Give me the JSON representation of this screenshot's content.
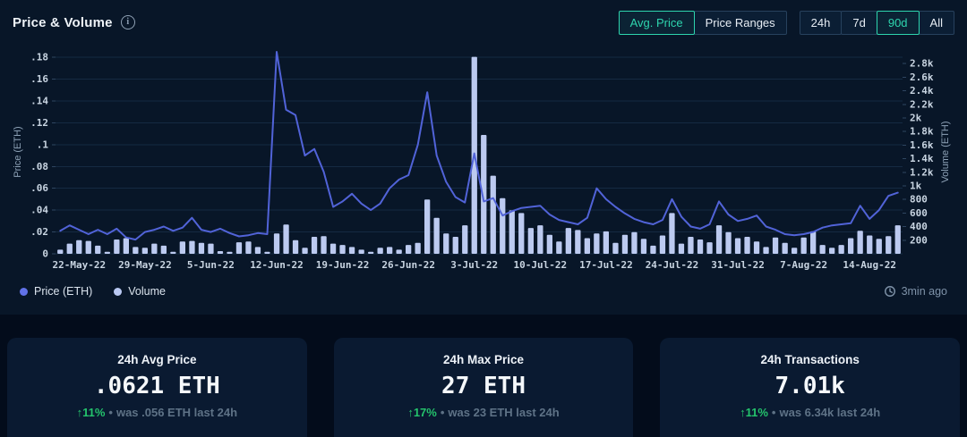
{
  "panel": {
    "title": "Price & Volume",
    "info_icon": "i",
    "updated": "3min ago",
    "legend": [
      {
        "label": "Price (ETH)",
        "color": "#6172e8"
      },
      {
        "label": "Volume",
        "color": "#b9c8f2"
      }
    ]
  },
  "controls": {
    "accent": "#2ed5ae",
    "view_modes": [
      {
        "label": "Avg. Price",
        "active": true
      },
      {
        "label": "Price Ranges",
        "active": false
      }
    ],
    "time_ranges": [
      {
        "label": "24h",
        "active": false
      },
      {
        "label": "7d",
        "active": false
      },
      {
        "label": "90d",
        "active": true
      },
      {
        "label": "All",
        "active": false
      }
    ]
  },
  "chart_data": {
    "type": "combo",
    "title": "Price & Volume (90d, daily)",
    "n_points": 90,
    "grid": true,
    "grid_color": "#152a42",
    "tick_mark_color": "#2e4560",
    "x_tick_labels": [
      "22-May-22",
      "29-May-22",
      "5-Jun-22",
      "12-Jun-22",
      "19-Jun-22",
      "26-Jun-22",
      "3-Jul-22",
      "10-Jul-22",
      "17-Jul-22",
      "24-Jul-22",
      "31-Jul-22",
      "7-Aug-22",
      "14-Aug-22"
    ],
    "x_tick_index": [
      2,
      9,
      16,
      23,
      30,
      37,
      44,
      51,
      58,
      65,
      72,
      79,
      86
    ],
    "price_axis": {
      "title": "Price (ETH)",
      "side": "left",
      "ticks": [
        0,
        0.02,
        0.04,
        0.06,
        0.08,
        0.1,
        0.12,
        0.14,
        0.16,
        0.18
      ],
      "tick_labels": [
        "0",
        ".02",
        ".04",
        ".06",
        ".08",
        ".1",
        ".12",
        ".14",
        ".16",
        ".18"
      ],
      "max": 0.1866
    },
    "volume_axis": {
      "title": "Volume (ETH)",
      "side": "right",
      "ticks": [
        200,
        400,
        600,
        800,
        1000,
        1200,
        1400,
        1600,
        1800,
        2000,
        2200,
        2400,
        2600,
        2800
      ],
      "tick_labels": [
        "200",
        "400",
        "600",
        "800",
        "1k",
        "1.2k",
        "1.4k",
        "1.6k",
        "1.8k",
        "2k",
        "2.2k",
        "2.4k",
        "2.6k",
        "2.8k"
      ],
      "max": 3000
    },
    "series": [
      {
        "name": "Price (ETH)",
        "type": "line",
        "color": "#5163d8",
        "values": [
          0.021,
          0.026,
          0.022,
          0.018,
          0.022,
          0.018,
          0.023,
          0.015,
          0.013,
          0.02,
          0.022,
          0.025,
          0.021,
          0.024,
          0.033,
          0.022,
          0.02,
          0.023,
          0.019,
          0.016,
          0.017,
          0.019,
          0.018,
          0.185,
          0.132,
          0.127,
          0.09,
          0.096,
          0.075,
          0.043,
          0.048,
          0.055,
          0.046,
          0.04,
          0.046,
          0.06,
          0.068,
          0.072,
          0.1,
          0.148,
          0.09,
          0.066,
          0.052,
          0.047,
          0.092,
          0.048,
          0.051,
          0.035,
          0.039,
          0.042,
          0.043,
          0.044,
          0.036,
          0.031,
          0.029,
          0.027,
          0.033,
          0.06,
          0.05,
          0.043,
          0.037,
          0.032,
          0.029,
          0.027,
          0.031,
          0.05,
          0.034,
          0.025,
          0.023,
          0.027,
          0.048,
          0.036,
          0.03,
          0.032,
          0.035,
          0.025,
          0.022,
          0.018,
          0.017,
          0.018,
          0.02,
          0.024,
          0.026,
          0.027,
          0.028,
          0.044,
          0.032,
          0.04,
          0.053,
          0.056
        ]
      },
      {
        "name": "Volume",
        "type": "bar",
        "color": "#bccaf0",
        "values": [
          60,
          150,
          200,
          190,
          120,
          30,
          210,
          230,
          100,
          90,
          150,
          120,
          30,
          180,
          190,
          160,
          150,
          40,
          30,
          170,
          180,
          100,
          30,
          300,
          430,
          200,
          90,
          250,
          260,
          150,
          130,
          100,
          60,
          30,
          90,
          100,
          60,
          130,
          160,
          800,
          530,
          300,
          250,
          420,
          2900,
          1750,
          1150,
          820,
          640,
          600,
          380,
          420,
          280,
          180,
          380,
          350,
          230,
          300,
          330,
          160,
          280,
          320,
          220,
          120,
          270,
          600,
          150,
          250,
          210,
          170,
          420,
          320,
          230,
          250,
          180,
          100,
          240,
          160,
          90,
          240,
          330,
          130,
          90,
          130,
          230,
          340,
          270,
          220,
          260,
          420
        ]
      }
    ]
  },
  "cards": [
    {
      "title": "24h Avg Price",
      "value": ".0621 ETH",
      "arrow": "↑",
      "change_pct": "11%",
      "bullet": "•",
      "change_note": "was .056 ETH last 24h"
    },
    {
      "title": "24h Max Price",
      "value": "27 ETH",
      "arrow": "↑",
      "change_pct": "17%",
      "bullet": "•",
      "change_note": "was 23 ETH last 24h"
    },
    {
      "title": "24h Transactions",
      "value": "7.01k",
      "arrow": "↑",
      "change_pct": "11%",
      "bullet": "•",
      "change_note": "was 6.34k last 24h"
    }
  ]
}
